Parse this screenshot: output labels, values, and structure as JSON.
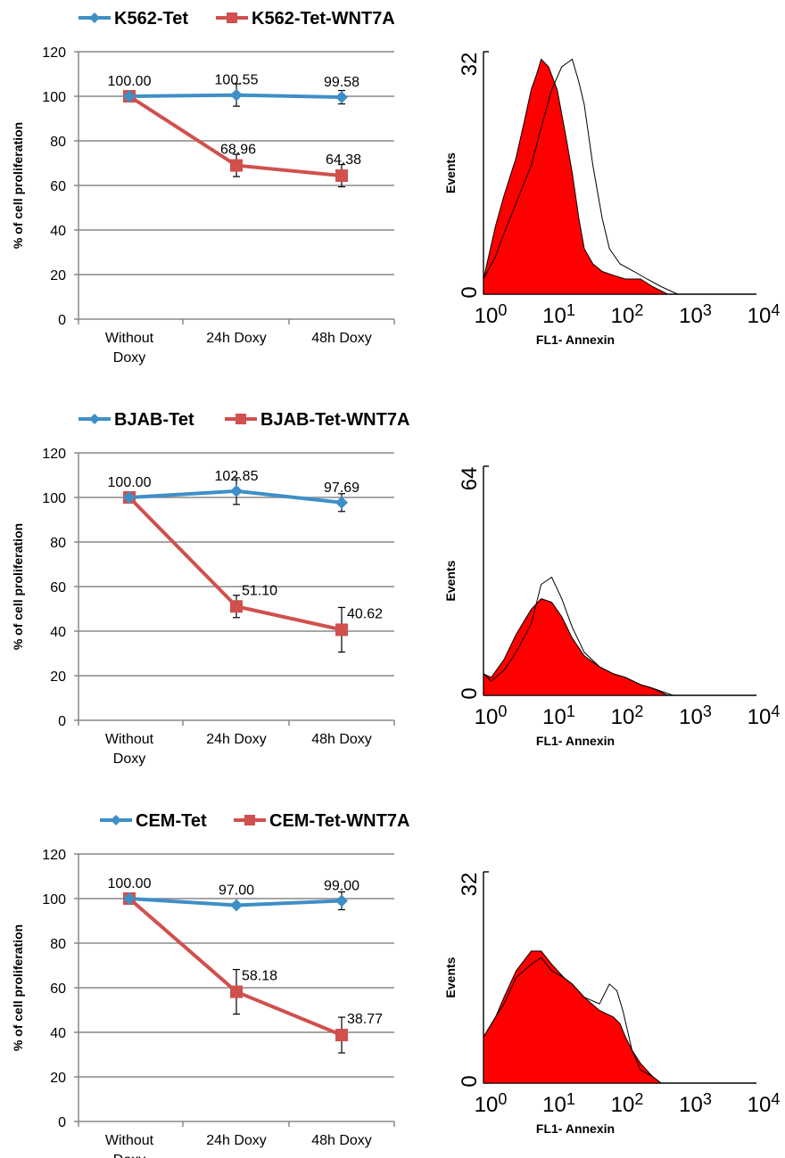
{
  "chart_data": [
    {
      "type": "line",
      "ylabel": "% of cell proliferation",
      "ylim": [
        0,
        120
      ],
      "yticks": [
        0,
        20,
        40,
        60,
        80,
        100,
        120
      ],
      "categories": [
        [
          "Without",
          "Doxy"
        ],
        [
          "24h Doxy"
        ],
        [
          "48h Doxy"
        ]
      ],
      "grid": true,
      "legend_position": "top",
      "series": [
        {
          "name": "K562-Tet",
          "color": "#3E8FC6",
          "marker": "diamond",
          "values": [
            100.0,
            100.55,
            99.58
          ],
          "errors": [
            0,
            5,
            3
          ],
          "labels": [
            "100.00",
            "100.55",
            "99.58"
          ]
        },
        {
          "name": "K562-Tet-WNT7A",
          "color": "#D0504D",
          "marker": "square",
          "values": [
            100.0,
            68.96,
            64.38
          ],
          "errors": [
            0,
            5,
            5
          ],
          "labels": [
            "",
            "68.96",
            "64.38"
          ]
        }
      ]
    },
    {
      "type": "line",
      "ylabel": "% of cell proliferation",
      "ylim": [
        0,
        120
      ],
      "yticks": [
        0,
        20,
        40,
        60,
        80,
        100,
        120
      ],
      "categories": [
        [
          "Without",
          "Doxy"
        ],
        [
          "24h Doxy"
        ],
        [
          "48h Doxy"
        ]
      ],
      "grid": true,
      "legend_position": "top",
      "series": [
        {
          "name": "BJAB-Tet",
          "color": "#3E8FC6",
          "marker": "diamond",
          "values": [
            100.0,
            102.85,
            97.69
          ],
          "errors": [
            0,
            6,
            4
          ],
          "labels": [
            "100.00",
            "102.85",
            "97.69"
          ]
        },
        {
          "name": "BJAB-Tet-WNT7A",
          "color": "#D0504D",
          "marker": "square",
          "values": [
            100.0,
            51.1,
            40.62
          ],
          "errors": [
            0,
            5,
            10
          ],
          "labels": [
            "",
            "51.10",
            "40.62"
          ]
        }
      ]
    },
    {
      "type": "line",
      "ylabel": "% of cell proliferation",
      "ylim": [
        0,
        120
      ],
      "yticks": [
        0,
        20,
        40,
        60,
        80,
        100,
        120
      ],
      "categories": [
        [
          "Without",
          "Doxy"
        ],
        [
          "24h Doxy"
        ],
        [
          "48h Doxy"
        ]
      ],
      "grid": true,
      "legend_position": "top",
      "series": [
        {
          "name": "CEM-Tet",
          "color": "#3E8FC6",
          "marker": "diamond",
          "values": [
            100.0,
            97.0,
            99.0
          ],
          "errors": [
            0,
            0,
            4
          ],
          "labels": [
            "100.00",
            "97.00",
            "99.00"
          ]
        },
        {
          "name": "CEM-Tet-WNT7A",
          "color": "#D0504D",
          "marker": "square",
          "values": [
            100.0,
            58.18,
            38.77
          ],
          "errors": [
            0,
            10,
            8
          ],
          "labels": [
            "",
            "58.18",
            "38.77"
          ]
        }
      ]
    },
    {
      "type": "area",
      "xlabel": "FL1- Annexin",
      "ylabel": "Events",
      "xscale": "log",
      "xlim": [
        1,
        10000
      ],
      "xtick_labels": [
        [
          "10",
          "0"
        ],
        [
          "10",
          "1"
        ],
        [
          "10",
          "2"
        ],
        [
          "10",
          "3"
        ],
        [
          "10",
          "4"
        ]
      ],
      "ylim": [
        0,
        32
      ],
      "ytick_labels": [
        "0",
        "32"
      ],
      "series": [
        {
          "name": "",
          "fill": "#FF0000",
          "curve": [
            [
              1,
              2
            ],
            [
              1.5,
              9
            ],
            [
              2,
              13
            ],
            [
              3,
              18
            ],
            [
              4,
              23
            ],
            [
              5,
              27
            ],
            [
              6,
              29
            ],
            [
              7,
              31
            ],
            [
              9,
              30
            ],
            [
              12,
              27
            ],
            [
              16,
              21
            ],
            [
              20,
              16
            ],
            [
              25,
              10
            ],
            [
              30,
              6
            ],
            [
              40,
              4
            ],
            [
              55,
              3
            ],
            [
              80,
              2.5
            ],
            [
              120,
              2
            ],
            [
              200,
              2
            ],
            [
              300,
              1
            ],
            [
              500,
              0
            ]
          ]
        },
        {
          "name": "",
          "fill": "none",
          "curve": [
            [
              1,
              2
            ],
            [
              1.5,
              5
            ],
            [
              2,
              8
            ],
            [
              3,
              12
            ],
            [
              5,
              17
            ],
            [
              7,
              22
            ],
            [
              10,
              27
            ],
            [
              14,
              30
            ],
            [
              20,
              31
            ],
            [
              25,
              28
            ],
            [
              30,
              25
            ],
            [
              40,
              17
            ],
            [
              55,
              10
            ],
            [
              70,
              6
            ],
            [
              100,
              4
            ],
            [
              160,
              3
            ],
            [
              250,
              2
            ],
            [
              400,
              1
            ],
            [
              700,
              0
            ]
          ]
        }
      ]
    },
    {
      "type": "area",
      "xlabel": "FL1- Annexin",
      "ylabel": "Events",
      "xscale": "log",
      "xlim": [
        1,
        10000
      ],
      "xtick_labels": [
        [
          "10",
          "0"
        ],
        [
          "10",
          "1"
        ],
        [
          "10",
          "2"
        ],
        [
          "10",
          "3"
        ],
        [
          "10",
          "4"
        ]
      ],
      "ylim": [
        0,
        64
      ],
      "ytick_labels": [
        "0",
        "64"
      ],
      "series": [
        {
          "name": "",
          "fill": "#FF0000",
          "curve": [
            [
              1,
              6
            ],
            [
              1.3,
              5
            ],
            [
              2,
              10
            ],
            [
              3,
              17
            ],
            [
              5,
              24
            ],
            [
              7,
              27
            ],
            [
              10,
              26
            ],
            [
              14,
              22
            ],
            [
              20,
              16
            ],
            [
              30,
              11
            ],
            [
              50,
              8
            ],
            [
              80,
              6
            ],
            [
              120,
              5
            ],
            [
              200,
              3
            ],
            [
              300,
              2
            ],
            [
              500,
              0
            ]
          ]
        },
        {
          "name": "",
          "fill": "none",
          "curve": [
            [
              1,
              6
            ],
            [
              1.3,
              4
            ],
            [
              2,
              7
            ],
            [
              3,
              12
            ],
            [
              5,
              20
            ],
            [
              7,
              31
            ],
            [
              10,
              33
            ],
            [
              14,
              27
            ],
            [
              20,
              19
            ],
            [
              30,
              12
            ],
            [
              50,
              8
            ],
            [
              80,
              6
            ],
            [
              120,
              5
            ],
            [
              200,
              3
            ],
            [
              300,
              2
            ],
            [
              600,
              0
            ]
          ]
        }
      ]
    },
    {
      "type": "area",
      "xlabel": "FL1- Annexin",
      "ylabel": "Events",
      "xscale": "log",
      "xlim": [
        1,
        10000
      ],
      "xtick_labels": [
        [
          "10",
          "0"
        ],
        [
          "10",
          "1"
        ],
        [
          "10",
          "2"
        ],
        [
          "10",
          "3"
        ],
        [
          "10",
          "4"
        ]
      ],
      "ylim": [
        0,
        32
      ],
      "ytick_labels": [
        "0",
        "32"
      ],
      "series": [
        {
          "name": "",
          "fill": "#FF0000",
          "curve": [
            [
              1,
              7
            ],
            [
              1.5,
              10
            ],
            [
              2,
              13
            ],
            [
              3,
              17
            ],
            [
              5,
              20
            ],
            [
              7,
              20
            ],
            [
              10,
              18
            ],
            [
              15,
              16
            ],
            [
              20,
              15
            ],
            [
              30,
              13
            ],
            [
              50,
              11
            ],
            [
              80,
              10
            ],
            [
              100,
              9
            ],
            [
              120,
              7
            ],
            [
              150,
              5
            ],
            [
              200,
              3
            ],
            [
              300,
              1
            ],
            [
              400,
              0
            ]
          ]
        },
        {
          "name": "",
          "fill": "none",
          "curve": [
            [
              1,
              7
            ],
            [
              1.5,
              10
            ],
            [
              2,
              12
            ],
            [
              3,
              16
            ],
            [
              5,
              18
            ],
            [
              7,
              19
            ],
            [
              10,
              17
            ],
            [
              15,
              16
            ],
            [
              20,
              15
            ],
            [
              30,
              13
            ],
            [
              50,
              12
            ],
            [
              70,
              15
            ],
            [
              90,
              14
            ],
            [
              110,
              11
            ],
            [
              150,
              5
            ],
            [
              200,
              2
            ],
            [
              300,
              1
            ],
            [
              400,
              0
            ]
          ]
        }
      ]
    }
  ]
}
